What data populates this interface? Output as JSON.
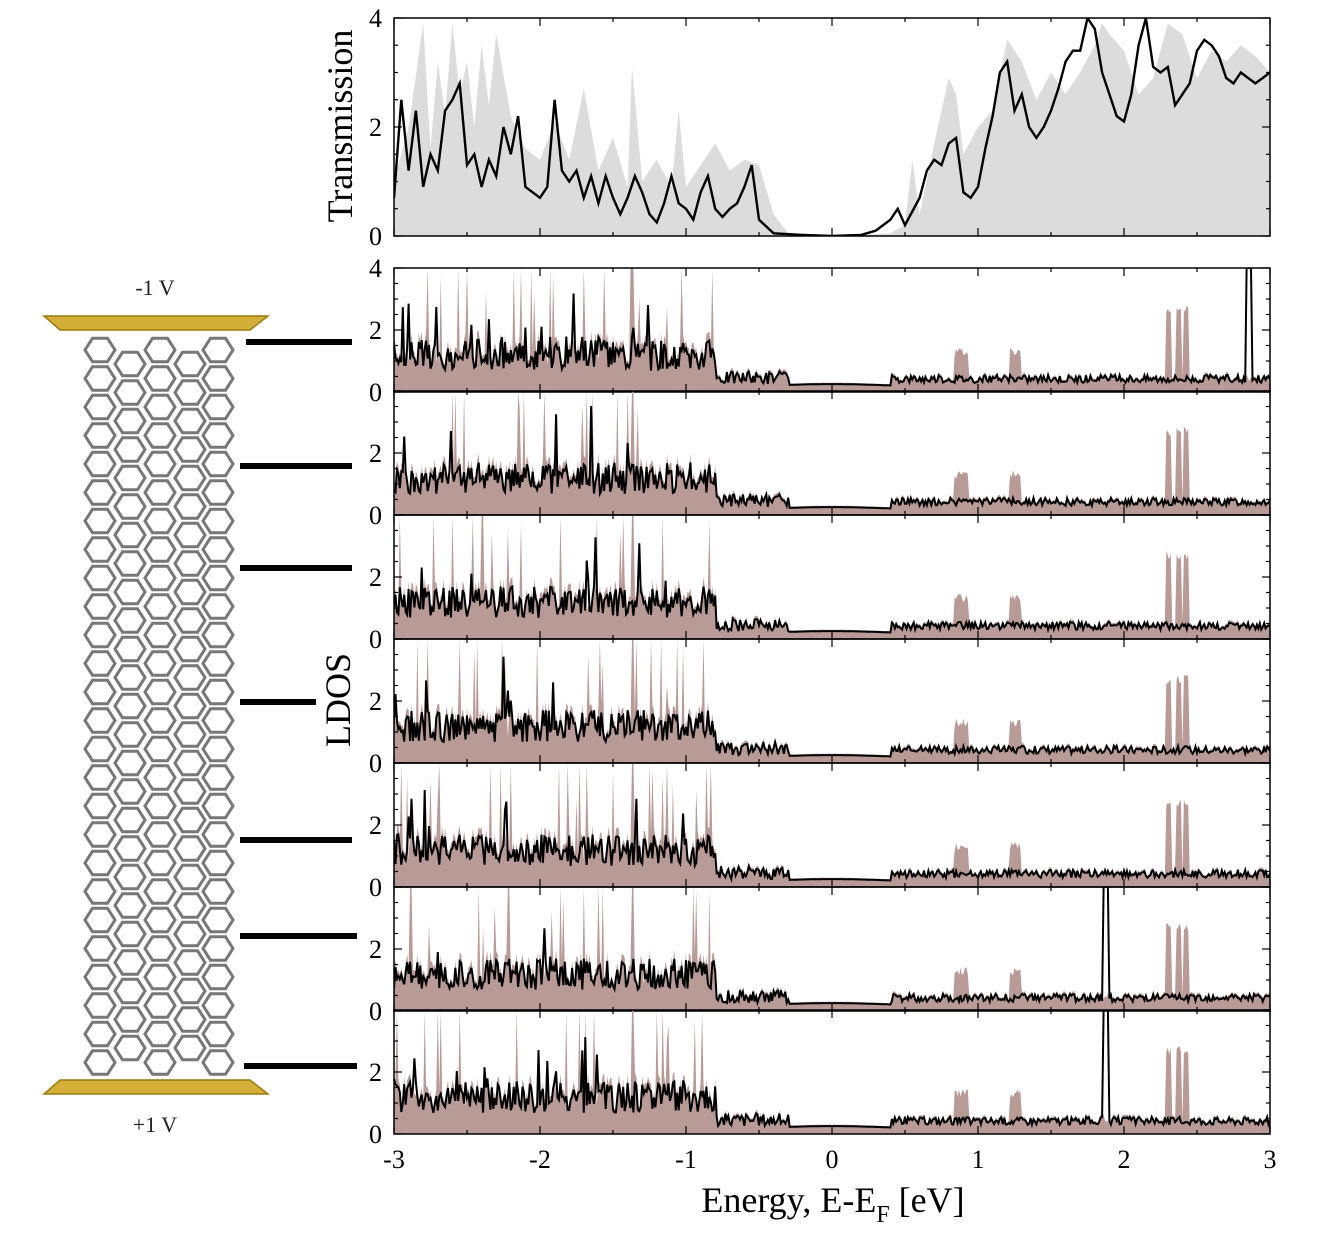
{
  "figure": {
    "top_voltage": "-1 V",
    "bottom_voltage": "+1 V",
    "transmission_ylabel": "Transmission",
    "ldos_ylabel": "LDOS",
    "xlabel_main": "Energy, E-E",
    "xlabel_sub": "F",
    "xlabel_tail": " [eV]"
  },
  "colors": {
    "transmission_fill": "#dcdcdc",
    "ldos_fill": "#b89a96",
    "line": "#000000",
    "gold": "#d4af37",
    "tube": "#777777"
  },
  "chart_data": [
    {
      "type": "area",
      "panel": "transmission",
      "ylabel": "Transmission",
      "xlim": [
        -3,
        3
      ],
      "ylim": [
        0,
        4
      ],
      "xticks": [
        "-3",
        "-2",
        "-1",
        "0",
        "1",
        "2",
        "3"
      ],
      "yticks": [
        "0",
        "2",
        "4"
      ],
      "series": [
        {
          "style": "fill",
          "x": [
            -3.0,
            -2.9,
            -2.8,
            -2.75,
            -2.7,
            -2.65,
            -2.6,
            -2.55,
            -2.5,
            -2.45,
            -2.4,
            -2.35,
            -2.3,
            -2.2,
            -2.1,
            -2.0,
            -1.9,
            -1.8,
            -1.7,
            -1.6,
            -1.5,
            -1.4,
            -1.37,
            -1.3,
            -1.2,
            -1.1,
            -1.05,
            -1.0,
            -0.9,
            -0.8,
            -0.7,
            -0.6,
            -0.5,
            -0.4,
            -0.3,
            -0.2,
            0.0,
            0.2,
            0.4,
            0.5,
            0.55,
            0.6,
            0.7,
            0.8,
            0.85,
            0.9,
            1.0,
            1.1,
            1.2,
            1.3,
            1.4,
            1.5,
            1.6,
            1.7,
            1.8,
            1.85,
            1.9,
            2.0,
            2.1,
            2.2,
            2.3,
            2.4,
            2.5,
            2.6,
            2.7,
            2.8,
            2.9,
            3.0
          ],
          "y": [
            1.0,
            2.0,
            3.9,
            1.6,
            3.2,
            2.2,
            3.9,
            2.6,
            3.2,
            2.0,
            3.5,
            2.4,
            3.7,
            2.2,
            1.6,
            1.4,
            2.1,
            1.4,
            2.7,
            1.2,
            1.8,
            0.9,
            3.1,
            1.0,
            1.4,
            0.9,
            2.3,
            0.9,
            1.3,
            1.7,
            1.2,
            1.4,
            1.3,
            0.4,
            0.05,
            0.02,
            0.0,
            0.02,
            0.05,
            0.2,
            1.4,
            0.4,
            1.7,
            2.9,
            2.6,
            1.5,
            2.0,
            2.3,
            3.6,
            3.2,
            2.5,
            3.0,
            2.6,
            3.0,
            3.5,
            3.9,
            3.7,
            3.4,
            2.6,
            2.9,
            3.9,
            3.7,
            2.9,
            3.4,
            3.2,
            3.5,
            3.3,
            3.0
          ]
        },
        {
          "style": "line",
          "x": [
            -3.0,
            -2.95,
            -2.9,
            -2.85,
            -2.8,
            -2.75,
            -2.7,
            -2.65,
            -2.6,
            -2.55,
            -2.5,
            -2.45,
            -2.4,
            -2.35,
            -2.3,
            -2.25,
            -2.2,
            -2.15,
            -2.1,
            -2.0,
            -1.95,
            -1.9,
            -1.85,
            -1.8,
            -1.75,
            -1.7,
            -1.65,
            -1.6,
            -1.55,
            -1.5,
            -1.45,
            -1.4,
            -1.35,
            -1.3,
            -1.25,
            -1.2,
            -1.15,
            -1.1,
            -1.05,
            -1.0,
            -0.95,
            -0.9,
            -0.85,
            -0.8,
            -0.75,
            -0.7,
            -0.65,
            -0.6,
            -0.55,
            -0.5,
            -0.4,
            -0.2,
            0.0,
            0.2,
            0.3,
            0.4,
            0.45,
            0.5,
            0.55,
            0.6,
            0.65,
            0.7,
            0.75,
            0.8,
            0.85,
            0.9,
            0.95,
            1.0,
            1.05,
            1.1,
            1.15,
            1.2,
            1.25,
            1.3,
            1.35,
            1.4,
            1.45,
            1.5,
            1.55,
            1.6,
            1.65,
            1.7,
            1.75,
            1.8,
            1.85,
            1.9,
            1.95,
            2.0,
            2.05,
            2.1,
            2.15,
            2.2,
            2.25,
            2.3,
            2.35,
            2.4,
            2.45,
            2.5,
            2.55,
            2.6,
            2.65,
            2.7,
            2.75,
            2.8,
            2.85,
            2.9,
            2.95,
            3.0
          ],
          "y": [
            0.7,
            2.5,
            1.2,
            2.3,
            0.9,
            1.5,
            1.2,
            2.3,
            2.5,
            2.8,
            1.3,
            1.5,
            0.9,
            1.4,
            1.1,
            2.0,
            1.5,
            2.2,
            0.9,
            0.7,
            0.9,
            2.5,
            1.2,
            1.0,
            1.2,
            0.7,
            1.1,
            0.6,
            1.1,
            0.7,
            0.4,
            0.7,
            1.1,
            0.8,
            0.4,
            0.25,
            0.6,
            1.1,
            0.6,
            0.5,
            0.3,
            0.8,
            1.1,
            0.5,
            0.35,
            0.5,
            0.6,
            0.9,
            1.3,
            0.3,
            0.05,
            0.02,
            0.0,
            0.02,
            0.1,
            0.3,
            0.5,
            0.2,
            0.45,
            0.7,
            1.2,
            1.4,
            1.3,
            1.7,
            1.8,
            0.8,
            0.7,
            0.9,
            1.6,
            2.2,
            3.0,
            3.2,
            2.3,
            2.6,
            2.0,
            1.8,
            2.0,
            2.3,
            2.7,
            3.2,
            3.4,
            3.4,
            4.0,
            3.8,
            3.0,
            2.6,
            2.2,
            2.1,
            2.6,
            3.5,
            4.0,
            3.1,
            3.0,
            3.1,
            2.4,
            2.6,
            2.8,
            3.4,
            3.6,
            3.5,
            3.3,
            2.9,
            2.8,
            3.0,
            2.9,
            2.8,
            2.9,
            3.0
          ]
        }
      ]
    },
    {
      "type": "area",
      "panel": "ldos",
      "ylabel": "LDOS",
      "xlabel": "Energy, E-EF [eV]",
      "xlim": [
        -3,
        3
      ],
      "ylim": [
        0,
        4
      ],
      "xticks": [
        "-3",
        "-2",
        "-1",
        "0",
        "1",
        "2",
        "3"
      ],
      "yticks": [
        "0",
        "2",
        "4"
      ],
      "layers": 7
    }
  ]
}
